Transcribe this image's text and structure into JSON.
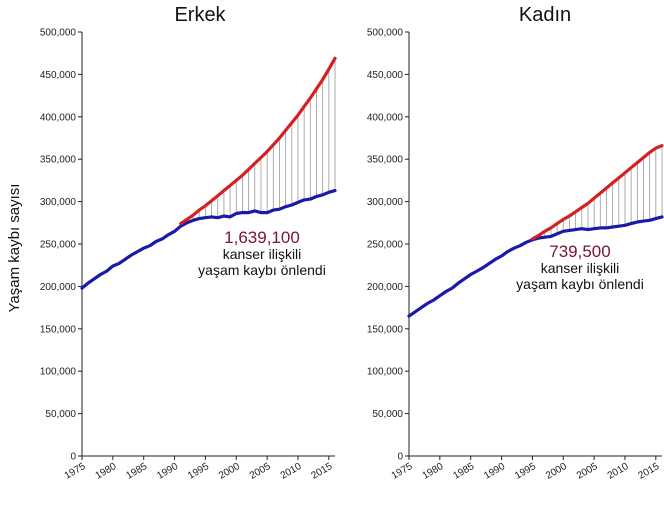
{
  "y_axis_label": "Yaşam kaybı sayısı",
  "chart_data": [
    {
      "type": "line",
      "title": "Erkek",
      "xlabel": "",
      "ylabel": "Yaşam kaybı sayısı",
      "xlim": [
        1975,
        2016
      ],
      "ylim": [
        0,
        500000
      ],
      "x_ticks": [
        1975,
        1980,
        1985,
        1990,
        1995,
        2000,
        2005,
        2010,
        2015
      ],
      "y_ticks": [
        0,
        50000,
        100000,
        150000,
        200000,
        250000,
        300000,
        350000,
        400000,
        450000,
        500000
      ],
      "y_tick_labels": [
        "0",
        "50,000",
        "100,000",
        "150,000",
        "200,000",
        "250,000",
        "300,000",
        "350,000",
        "400,000",
        "450,000",
        "500,000"
      ],
      "grid": false,
      "series": [
        {
          "color": "#d42020",
          "x": [
            1991,
            1992,
            1993,
            1994,
            1995,
            1996,
            1997,
            1998,
            1999,
            2000,
            2001,
            2002,
            2003,
            2004,
            2005,
            2006,
            2007,
            2008,
            2009,
            2010,
            2011,
            2012,
            2013,
            2014,
            2015,
            2016
          ],
          "values": [
            274000,
            279000,
            284000,
            290000,
            295000,
            301000,
            307000,
            313000,
            319000,
            325000,
            331000,
            338000,
            345000,
            352000,
            359000,
            367000,
            375000,
            384000,
            393000,
            402000,
            412000,
            422000,
            433000,
            444000,
            456000,
            469000
          ]
        },
        {
          "color": "#1a1aaa",
          "x": [
            1975,
            1976,
            1977,
            1978,
            1979,
            1980,
            1981,
            1982,
            1983,
            1984,
            1985,
            1986,
            1987,
            1988,
            1989,
            1990,
            1991,
            1992,
            1993,
            1994,
            1995,
            1996,
            1997,
            1998,
            1999,
            2000,
            2001,
            2002,
            2003,
            2004,
            2005,
            2006,
            2007,
            2008,
            2009,
            2010,
            2011,
            2012,
            2013,
            2014,
            2015,
            2016
          ],
          "values": [
            198000,
            204000,
            209000,
            214000,
            218000,
            224000,
            227000,
            232000,
            237000,
            241000,
            245000,
            248000,
            253000,
            256000,
            261000,
            265000,
            271000,
            275000,
            278000,
            280000,
            281000,
            282000,
            281000,
            283000,
            282000,
            286000,
            287000,
            287000,
            289000,
            287000,
            287000,
            290000,
            291000,
            294000,
            296000,
            299000,
            302000,
            303000,
            306000,
            308000,
            311000,
            313000
          ]
        }
      ],
      "annotation": {
        "value": "1,639,100",
        "line1": "kanser ilişkili",
        "line2": "yaşam kaybı önlendi"
      }
    },
    {
      "type": "line",
      "title": "Kadın",
      "xlabel": "",
      "ylabel": "",
      "xlim": [
        1975,
        2016
      ],
      "ylim": [
        0,
        500000
      ],
      "x_ticks": [
        1975,
        1980,
        1985,
        1990,
        1995,
        2000,
        2005,
        2010,
        2015
      ],
      "y_ticks": [
        0,
        50000,
        100000,
        150000,
        200000,
        250000,
        300000,
        350000,
        400000,
        450000,
        500000
      ],
      "y_tick_labels": [
        "0",
        "50,000",
        "100,000",
        "150,000",
        "200,000",
        "250,000",
        "300,000",
        "350,000",
        "400,000",
        "450,000",
        "500,000"
      ],
      "grid": false,
      "series": [
        {
          "color": "#d42020",
          "x": [
            1995,
            1996,
            1997,
            1998,
            1999,
            2000,
            2001,
            2002,
            2003,
            2004,
            2005,
            2006,
            2007,
            2008,
            2009,
            2010,
            2011,
            2012,
            2013,
            2014,
            2015,
            2016
          ],
          "values": [
            256000,
            260000,
            265000,
            269000,
            274000,
            279000,
            283000,
            288000,
            293000,
            298000,
            304000,
            310000,
            316000,
            322000,
            328000,
            334000,
            340000,
            346000,
            352000,
            358000,
            363000,
            366000
          ]
        },
        {
          "color": "#1a1aaa",
          "x": [
            1975,
            1976,
            1977,
            1978,
            1979,
            1980,
            1981,
            1982,
            1983,
            1984,
            1985,
            1986,
            1987,
            1988,
            1989,
            1990,
            1991,
            1992,
            1993,
            1994,
            1995,
            1996,
            1997,
            1998,
            1999,
            2000,
            2001,
            2002,
            2003,
            2004,
            2005,
            2006,
            2007,
            2008,
            2009,
            2010,
            2011,
            2012,
            2013,
            2014,
            2015,
            2016
          ],
          "values": [
            165000,
            170000,
            175000,
            180000,
            184000,
            189000,
            194000,
            198000,
            204000,
            209000,
            214000,
            218000,
            222000,
            227000,
            232000,
            236000,
            241000,
            245000,
            248000,
            252000,
            255000,
            257000,
            258000,
            259000,
            262000,
            265000,
            266000,
            267000,
            268000,
            267000,
            268000,
            269000,
            269000,
            270000,
            271000,
            272000,
            274000,
            276000,
            277000,
            278000,
            280000,
            282000
          ]
        }
      ],
      "annotation": {
        "value": "739,500",
        "line1": "kanser ilişkili",
        "line2": "yaşam kaybı önlendi"
      }
    }
  ]
}
